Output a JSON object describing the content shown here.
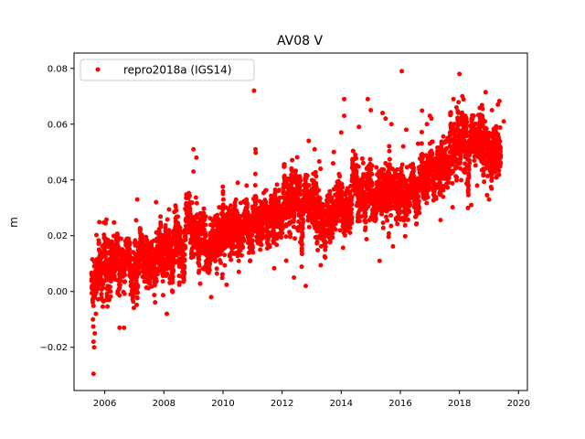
{
  "chart_data": {
    "type": "scatter",
    "title": "AV08 V",
    "xlabel": "",
    "ylabel": "m",
    "xlim": [
      2004.96,
      2020.3
    ],
    "ylim": [
      -0.0355,
      0.0855
    ],
    "x_ticks": [
      2006,
      2008,
      2010,
      2012,
      2014,
      2016,
      2018,
      2020
    ],
    "x_tick_labels": [
      "2006",
      "2008",
      "2010",
      "2012",
      "2014",
      "2016",
      "2018",
      "2020"
    ],
    "y_ticks": [
      -0.02,
      0.0,
      0.02,
      0.04,
      0.06,
      0.08
    ],
    "y_tick_labels": [
      "−0.02",
      "0.00",
      "0.02",
      "0.04",
      "0.06",
      "0.08"
    ],
    "grid": false,
    "legend_position": "top-left",
    "colors": {
      "series": "#ff0000",
      "axes": "#000000",
      "legend_border": "#cccccc"
    },
    "series": [
      {
        "name": "repro2018a (IGS14)",
        "color": "#ff0000",
        "marker": "circle",
        "trend": [
          [
            2005.55,
            0.004
          ],
          [
            2005.8,
            0.008
          ],
          [
            2006.0,
            0.009
          ],
          [
            2006.5,
            0.008
          ],
          [
            2007.0,
            0.008
          ],
          [
            2007.5,
            0.01
          ],
          [
            2008.0,
            0.014
          ],
          [
            2008.5,
            0.017
          ],
          [
            2009.0,
            0.022
          ],
          [
            2009.5,
            0.018
          ],
          [
            2010.0,
            0.021
          ],
          [
            2010.5,
            0.022
          ],
          [
            2011.0,
            0.025
          ],
          [
            2011.5,
            0.028
          ],
          [
            2012.0,
            0.029
          ],
          [
            2012.5,
            0.029
          ],
          [
            2013.0,
            0.027
          ],
          [
            2013.5,
            0.029
          ],
          [
            2014.0,
            0.031
          ],
          [
            2014.5,
            0.034
          ],
          [
            2015.0,
            0.037
          ],
          [
            2015.5,
            0.036
          ],
          [
            2016.0,
            0.034
          ],
          [
            2016.5,
            0.037
          ],
          [
            2017.0,
            0.045
          ],
          [
            2017.5,
            0.046
          ],
          [
            2018.0,
            0.05
          ],
          [
            2018.5,
            0.049
          ],
          [
            2019.0,
            0.054
          ],
          [
            2019.4,
            0.052
          ]
        ],
        "outliers": [
          [
            2005.62,
            -0.0295
          ],
          [
            2005.62,
            -0.018
          ],
          [
            2005.64,
            -0.02
          ],
          [
            2005.66,
            -0.015
          ],
          [
            2005.6,
            -0.01
          ],
          [
            2005.7,
            -0.008
          ],
          [
            2006.05,
            -0.003
          ],
          [
            2006.5,
            -0.013
          ],
          [
            2006.65,
            -0.013
          ],
          [
            2007.1,
            0.033
          ],
          [
            2008.1,
            -0.008
          ],
          [
            2008.4,
            0.029
          ],
          [
            2009.0,
            0.043
          ],
          [
            2009.0,
            0.051
          ],
          [
            2009.1,
            0.048
          ],
          [
            2009.6,
            -0.002
          ],
          [
            2010.0,
            0.035
          ],
          [
            2010.5,
            0.039
          ],
          [
            2011.05,
            0.072
          ],
          [
            2011.1,
            0.051
          ],
          [
            2012.4,
            0.005
          ],
          [
            2012.8,
            0.002
          ],
          [
            2012.9,
            0.054
          ],
          [
            2013.1,
            0.051
          ],
          [
            2013.75,
            0.05
          ],
          [
            2014.0,
            0.057
          ],
          [
            2014.1,
            0.069
          ],
          [
            2014.1,
            0.063
          ],
          [
            2014.9,
            0.069
          ],
          [
            2015.0,
            0.065
          ],
          [
            2015.3,
            0.011
          ],
          [
            2015.4,
            0.064
          ],
          [
            2015.5,
            0.062
          ],
          [
            2016.05,
            0.079
          ],
          [
            2016.2,
            0.058
          ],
          [
            2016.6,
            0.053
          ],
          [
            2017.0,
            0.063
          ],
          [
            2017.05,
            0.062
          ],
          [
            2017.6,
            0.055
          ],
          [
            2017.9,
            0.066
          ],
          [
            2018.0,
            0.078
          ],
          [
            2018.1,
            0.07
          ],
          [
            2018.2,
            0.063
          ],
          [
            2018.4,
            0.031
          ],
          [
            2019.0,
            0.033
          ],
          [
            2019.1,
            0.065
          ],
          [
            2019.3,
            0.067
          ],
          [
            2019.5,
            0.061
          ],
          [
            2017.8,
            0.069
          ],
          [
            2016.9,
            0.06
          ],
          [
            2014.6,
            0.059
          ],
          [
            2018.6,
            0.038
          ],
          [
            2013.3,
            0.044
          ],
          [
            2010.8,
            0.038
          ],
          [
            2016.1,
            0.052
          ],
          [
            2015.7,
            0.06
          ]
        ]
      }
    ]
  }
}
